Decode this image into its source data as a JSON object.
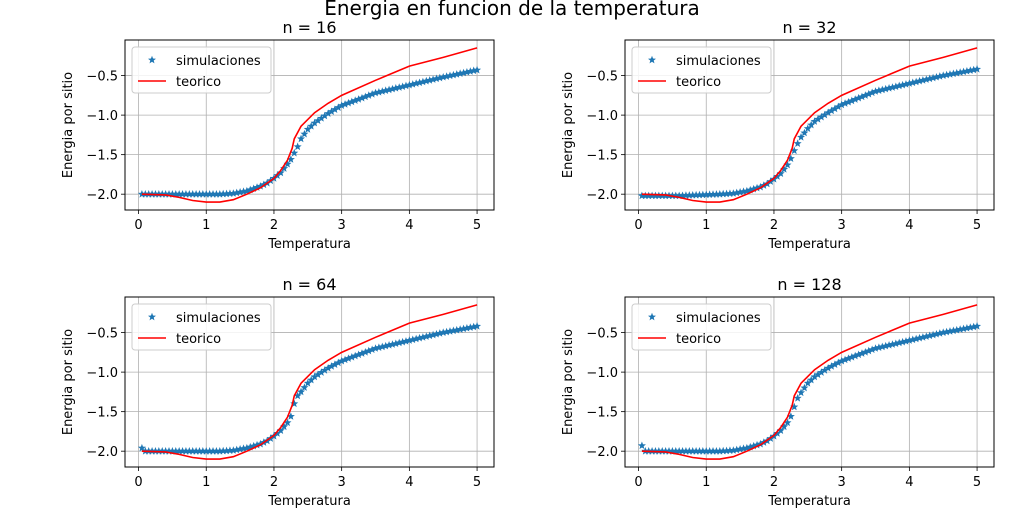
{
  "figure": {
    "title": "Energia en funcion de la temperatura"
  },
  "chart_data": [
    {
      "type": "line",
      "title": "n = 16",
      "xlabel": "Temperatura",
      "ylabel": "Energia por sitio",
      "xlim": [
        -0.2,
        5.25
      ],
      "ylim": [
        -2.2,
        -0.05
      ],
      "xticks": [
        "0",
        "1",
        "2",
        "3",
        "4",
        "5"
      ],
      "yticks": [
        "−2.0",
        "−1.5",
        "−1.0",
        "−0.5"
      ],
      "grid": true,
      "legend_position": "upper-left",
      "series": [
        {
          "name": "simulaciones",
          "marker": "star",
          "color": "#1f77b4",
          "x": [
            0.05,
            0.3,
            0.6,
            0.9,
            1.2,
            1.4,
            1.6,
            1.8,
            1.9,
            2.0,
            2.1,
            2.2,
            2.25,
            2.3,
            2.35,
            2.4,
            2.5,
            2.6,
            2.8,
            3.0,
            3.5,
            4.0,
            4.5,
            5.0
          ],
          "y": [
            -2.0,
            -2.0,
            -2.0,
            -2.0,
            -2.0,
            -1.99,
            -1.96,
            -1.9,
            -1.86,
            -1.8,
            -1.73,
            -1.62,
            -1.56,
            -1.48,
            -1.4,
            -1.3,
            -1.18,
            -1.1,
            -0.98,
            -0.88,
            -0.72,
            -0.62,
            -0.52,
            -0.43
          ]
        },
        {
          "name": "teorico",
          "marker": "line",
          "color": "#ff0000",
          "x": [
            0.05,
            0.4,
            0.6,
            0.8,
            1.0,
            1.2,
            1.4,
            1.6,
            1.8,
            2.0,
            2.1,
            2.2,
            2.269,
            2.3,
            2.4,
            2.6,
            2.8,
            3.0,
            3.5,
            4.0,
            4.5,
            5.0
          ],
          "y": [
            -2.0,
            -2.01,
            -2.04,
            -2.08,
            -2.1,
            -2.1,
            -2.07,
            -2.0,
            -1.92,
            -1.8,
            -1.7,
            -1.57,
            -1.42,
            -1.3,
            -1.14,
            -0.97,
            -0.85,
            -0.75,
            -0.56,
            -0.38,
            -0.27,
            -0.15
          ]
        }
      ]
    },
    {
      "type": "line",
      "title": "n = 32",
      "xlabel": "Temperatura",
      "ylabel": "Energia por sitio",
      "xlim": [
        -0.2,
        5.25
      ],
      "ylim": [
        -2.2,
        -0.05
      ],
      "xticks": [
        "0",
        "1",
        "2",
        "3",
        "4",
        "5"
      ],
      "yticks": [
        "−2.0",
        "−1.5",
        "−1.0",
        "−0.5"
      ],
      "grid": true,
      "legend_position": "upper-left",
      "series": [
        {
          "name": "simulaciones",
          "marker": "star",
          "color": "#1f77b4",
          "x": [
            0.05,
            0.3,
            0.6,
            0.9,
            1.2,
            1.4,
            1.6,
            1.8,
            1.9,
            2.0,
            2.1,
            2.2,
            2.25,
            2.3,
            2.35,
            2.4,
            2.5,
            2.6,
            2.8,
            3.0,
            3.5,
            4.0,
            4.5,
            5.0
          ],
          "y": [
            -2.02,
            -2.02,
            -2.02,
            -2.01,
            -2.0,
            -1.99,
            -1.96,
            -1.91,
            -1.87,
            -1.81,
            -1.74,
            -1.63,
            -1.55,
            -1.45,
            -1.36,
            -1.28,
            -1.17,
            -1.08,
            -0.97,
            -0.87,
            -0.7,
            -0.6,
            -0.5,
            -0.42
          ]
        },
        {
          "name": "teorico",
          "marker": "line",
          "color": "#ff0000",
          "x": [
            0.05,
            0.4,
            0.6,
            0.8,
            1.0,
            1.2,
            1.4,
            1.6,
            1.8,
            2.0,
            2.1,
            2.2,
            2.269,
            2.3,
            2.4,
            2.6,
            2.8,
            3.0,
            3.5,
            4.0,
            4.5,
            5.0
          ],
          "y": [
            -2.0,
            -2.01,
            -2.04,
            -2.08,
            -2.1,
            -2.1,
            -2.07,
            -2.0,
            -1.92,
            -1.8,
            -1.7,
            -1.57,
            -1.42,
            -1.3,
            -1.14,
            -0.97,
            -0.85,
            -0.75,
            -0.56,
            -0.38,
            -0.27,
            -0.15
          ]
        }
      ]
    },
    {
      "type": "line",
      "title": "n = 64",
      "xlabel": "Temperatura",
      "ylabel": "Energia por sitio",
      "xlim": [
        -0.2,
        5.25
      ],
      "ylim": [
        -2.2,
        -0.05
      ],
      "xticks": [
        "0",
        "1",
        "2",
        "3",
        "4",
        "5"
      ],
      "yticks": [
        "−2.0",
        "−1.5",
        "−1.0",
        "−0.5"
      ],
      "grid": true,
      "legend_position": "upper-left",
      "series": [
        {
          "name": "simulaciones",
          "marker": "star",
          "color": "#1f77b4",
          "x": [
            0.05,
            0.1,
            0.3,
            0.6,
            0.9,
            1.2,
            1.4,
            1.6,
            1.8,
            1.9,
            2.0,
            2.1,
            2.2,
            2.25,
            2.3,
            2.35,
            2.4,
            2.5,
            2.6,
            2.8,
            3.0,
            3.5,
            4.0,
            4.5,
            5.0
          ],
          "y": [
            -1.96,
            -2.0,
            -2.0,
            -2.0,
            -2.0,
            -2.0,
            -1.99,
            -1.96,
            -1.91,
            -1.87,
            -1.81,
            -1.74,
            -1.64,
            -1.56,
            -1.4,
            -1.3,
            -1.25,
            -1.14,
            -1.06,
            -0.95,
            -0.86,
            -0.7,
            -0.6,
            -0.5,
            -0.42
          ]
        },
        {
          "name": "teorico",
          "marker": "line",
          "color": "#ff0000",
          "x": [
            0.05,
            0.4,
            0.6,
            0.8,
            1.0,
            1.2,
            1.4,
            1.6,
            1.8,
            2.0,
            2.1,
            2.2,
            2.269,
            2.3,
            2.4,
            2.6,
            2.8,
            3.0,
            3.5,
            4.0,
            4.5,
            5.0
          ],
          "y": [
            -2.0,
            -2.01,
            -2.04,
            -2.08,
            -2.1,
            -2.1,
            -2.07,
            -2.0,
            -1.92,
            -1.8,
            -1.7,
            -1.57,
            -1.42,
            -1.3,
            -1.14,
            -0.97,
            -0.85,
            -0.75,
            -0.56,
            -0.38,
            -0.27,
            -0.15
          ]
        }
      ]
    },
    {
      "type": "line",
      "title": "n = 128",
      "xlabel": "Temperatura",
      "ylabel": "Energia por sitio",
      "xlim": [
        -0.2,
        5.25
      ],
      "ylim": [
        -2.2,
        -0.05
      ],
      "xticks": [
        "0",
        "1",
        "2",
        "3",
        "4",
        "5"
      ],
      "yticks": [
        "−2.0",
        "−1.5",
        "−1.0",
        "−0.5"
      ],
      "grid": true,
      "legend_position": "upper-left",
      "series": [
        {
          "name": "simulaciones",
          "marker": "star",
          "color": "#1f77b4",
          "x": [
            0.05,
            0.1,
            0.3,
            0.6,
            0.9,
            1.2,
            1.4,
            1.6,
            1.8,
            1.9,
            2.0,
            2.1,
            2.2,
            2.25,
            2.3,
            2.35,
            2.4,
            2.5,
            2.6,
            2.8,
            3.0,
            3.5,
            4.0,
            4.5,
            5.0
          ],
          "y": [
            -1.93,
            -2.0,
            -2.0,
            -2.0,
            -2.0,
            -2.0,
            -1.99,
            -1.96,
            -1.91,
            -1.87,
            -1.81,
            -1.74,
            -1.64,
            -1.56,
            -1.44,
            -1.33,
            -1.26,
            -1.14,
            -1.06,
            -0.95,
            -0.86,
            -0.7,
            -0.6,
            -0.5,
            -0.42
          ]
        },
        {
          "name": "teorico",
          "marker": "line",
          "color": "#ff0000",
          "x": [
            0.05,
            0.4,
            0.6,
            0.8,
            1.0,
            1.2,
            1.4,
            1.6,
            1.8,
            2.0,
            2.1,
            2.2,
            2.269,
            2.3,
            2.4,
            2.6,
            2.8,
            3.0,
            3.5,
            4.0,
            4.5,
            5.0
          ],
          "y": [
            -2.0,
            -2.01,
            -2.04,
            -2.08,
            -2.1,
            -2.1,
            -2.07,
            -2.0,
            -1.92,
            -1.8,
            -1.7,
            -1.57,
            -1.42,
            -1.3,
            -1.14,
            -0.97,
            -0.85,
            -0.75,
            -0.56,
            -0.38,
            -0.27,
            -0.15
          ]
        }
      ]
    }
  ]
}
